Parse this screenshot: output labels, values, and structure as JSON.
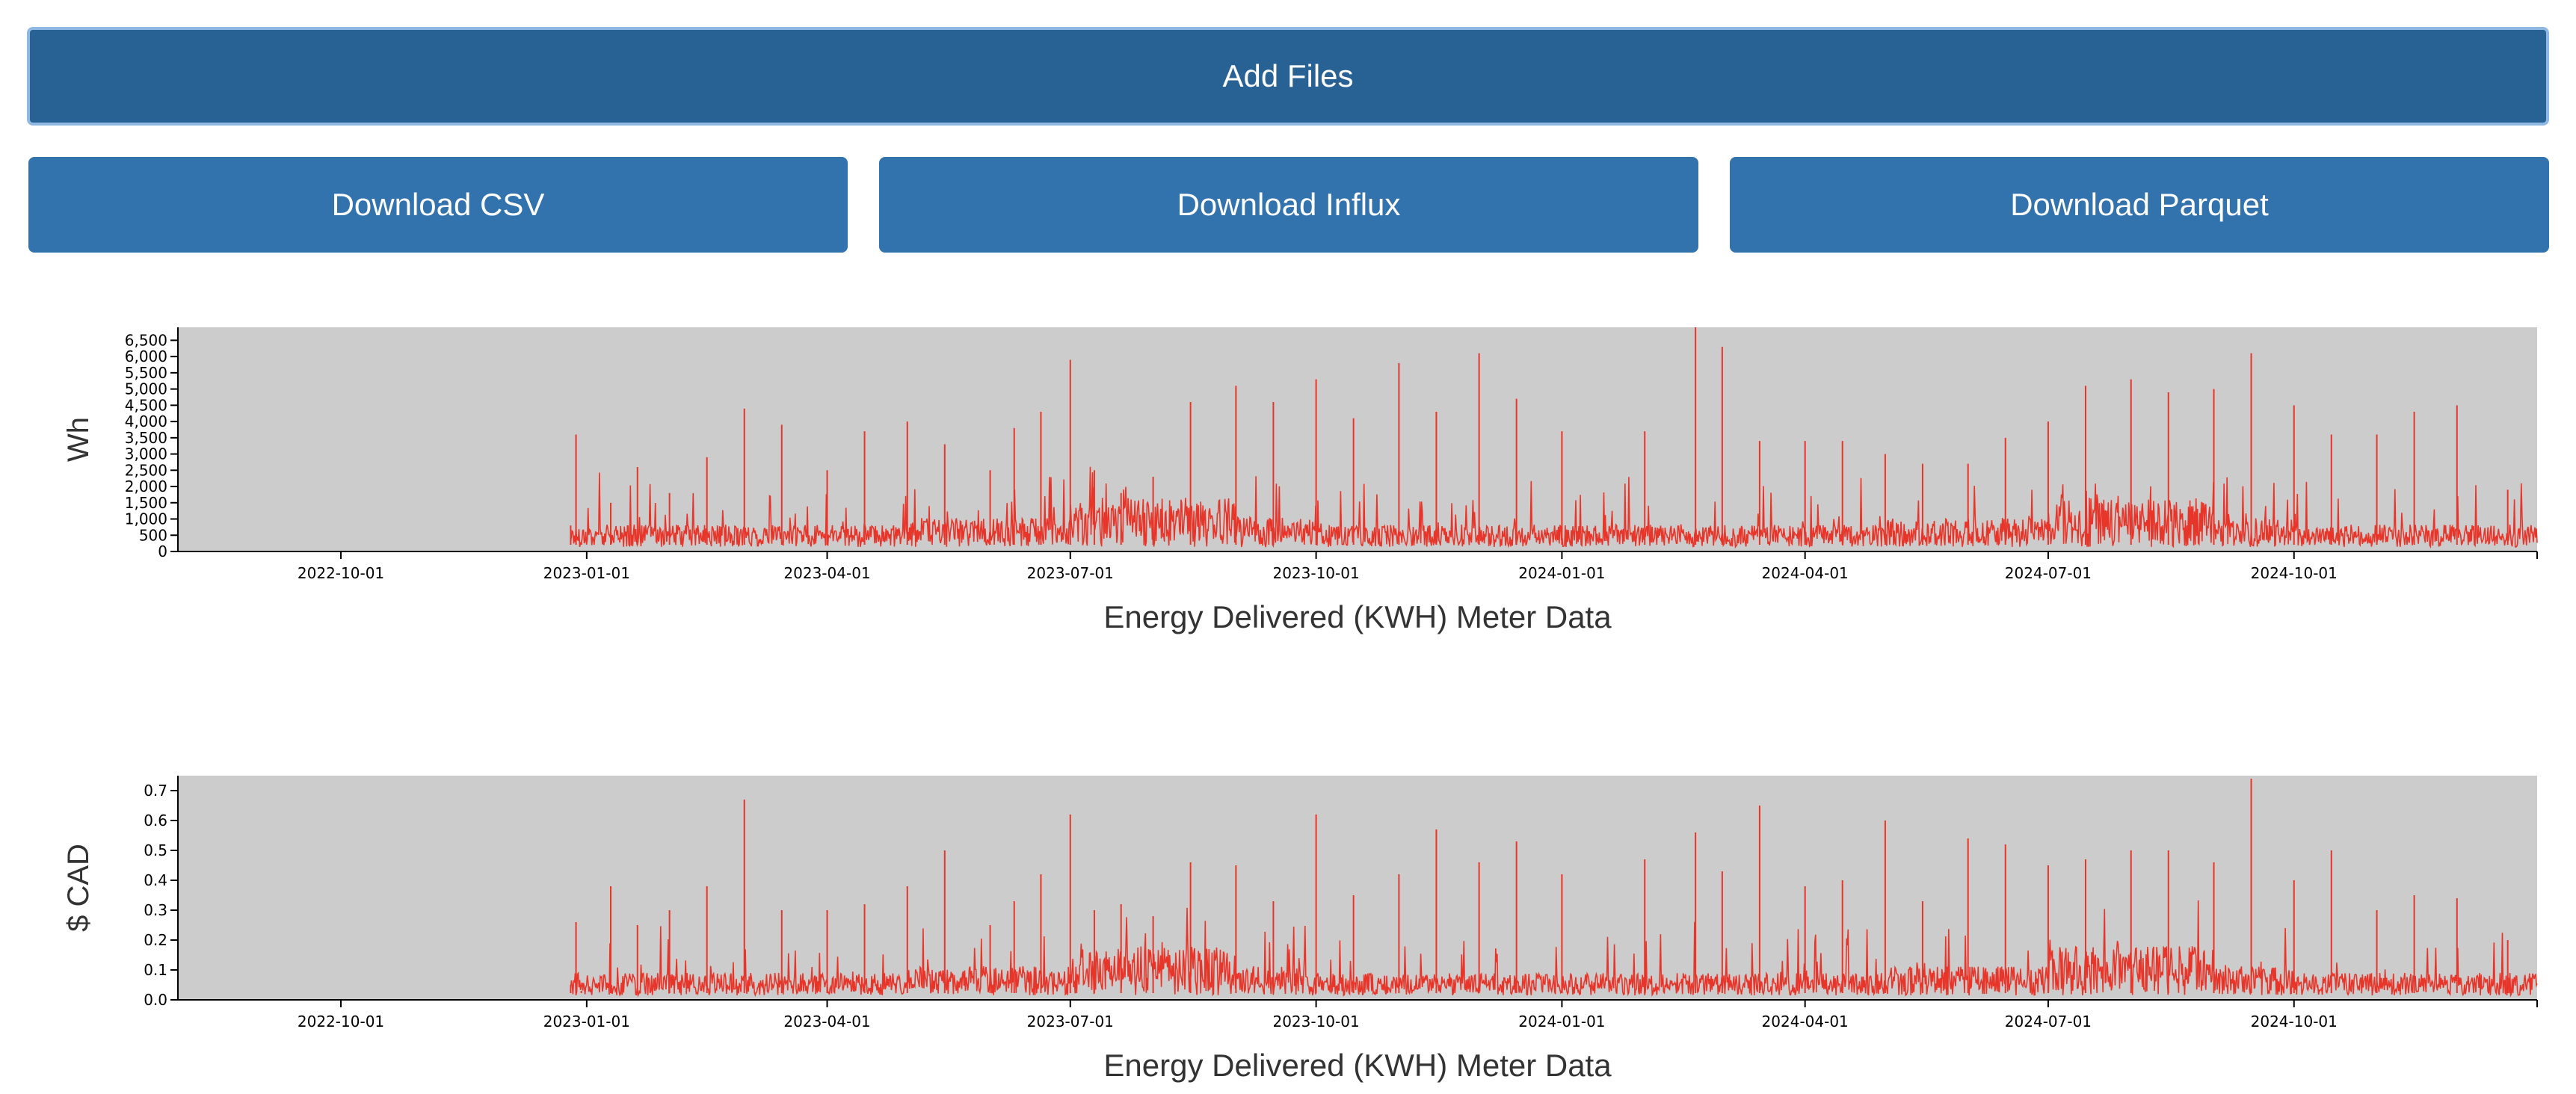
{
  "toolbar": {
    "add_files_label": "Add Files",
    "download_csv_label": "Download CSV",
    "download_influx_label": "Download Influx",
    "download_parquet_label": "Download Parquet"
  },
  "colors": {
    "plot_background": "#cccccc",
    "series": "#e8352a",
    "add_files_button": "#286193",
    "download_button": "#3272ad"
  },
  "chart_data": [
    {
      "type": "line",
      "title": "",
      "xlabel": "Energy Delivered (KWH) Meter Data",
      "ylabel": "Wh",
      "x_range": [
        "2022-08-01",
        "2024-12-31"
      ],
      "x_ticks": [
        "2022-10-01",
        "2023-01-01",
        "2023-04-01",
        "2023-07-01",
        "2023-10-01",
        "2024-01-01",
        "2024-04-01",
        "2024-07-01",
        "2024-10-01"
      ],
      "ylim": [
        0,
        6900
      ],
      "y_ticks": [
        0,
        500,
        1000,
        1500,
        2000,
        2500,
        3000,
        3500,
        4000,
        4500,
        5000,
        5500,
        6000,
        6500
      ],
      "y_tick_labels": [
        "0",
        "500",
        "1,000",
        "1,500",
        "2,000",
        "2,500",
        "3,000",
        "3,500",
        "4,000",
        "4,500",
        "5,000",
        "5,500",
        "6,000",
        "6,500"
      ],
      "grid": false,
      "series": [
        {
          "values": [
            [
              "2022-12-26",
              800
            ],
            [
              "2022-12-28",
              3600
            ],
            [
              "2022-12-30",
              300
            ],
            [
              "2023-01-10",
              1500
            ],
            [
              "2023-01-20",
              2600
            ],
            [
              "2023-02-01",
              1800
            ],
            [
              "2023-02-15",
              2900
            ],
            [
              "2023-03-01",
              4400
            ],
            [
              "2023-03-15",
              3900
            ],
            [
              "2023-04-01",
              2500
            ],
            [
              "2023-04-15",
              3700
            ],
            [
              "2023-05-01",
              4000
            ],
            [
              "2023-05-15",
              3300
            ],
            [
              "2023-06-01",
              2500
            ],
            [
              "2023-06-10",
              3800
            ],
            [
              "2023-06-20",
              4300
            ],
            [
              "2023-07-01",
              5900
            ],
            [
              "2023-07-10",
              2500
            ],
            [
              "2023-07-20",
              1800
            ],
            [
              "2023-08-01",
              2300
            ],
            [
              "2023-08-15",
              4600
            ],
            [
              "2023-09-01",
              5100
            ],
            [
              "2023-09-15",
              4600
            ],
            [
              "2023-10-01",
              5300
            ],
            [
              "2023-10-15",
              4100
            ],
            [
              "2023-11-01",
              5800
            ],
            [
              "2023-11-15",
              4300
            ],
            [
              "2023-12-01",
              6100
            ],
            [
              "2023-12-15",
              4700
            ],
            [
              "2024-01-01",
              3700
            ],
            [
              "2024-02-01",
              3700
            ],
            [
              "2024-02-20",
              6900
            ],
            [
              "2024-03-01",
              6300
            ],
            [
              "2024-03-15",
              3400
            ],
            [
              "2024-04-01",
              3400
            ],
            [
              "2024-04-15",
              3400
            ],
            [
              "2024-05-01",
              3000
            ],
            [
              "2024-05-15",
              2700
            ],
            [
              "2024-06-01",
              2700
            ],
            [
              "2024-06-15",
              3500
            ],
            [
              "2024-07-01",
              4000
            ],
            [
              "2024-07-15",
              5100
            ],
            [
              "2024-08-01",
              5300
            ],
            [
              "2024-08-15",
              4900
            ],
            [
              "2024-09-01",
              5000
            ],
            [
              "2024-09-15",
              6100
            ],
            [
              "2024-10-01",
              4500
            ],
            [
              "2024-10-15",
              3600
            ],
            [
              "2024-11-01",
              3600
            ],
            [
              "2024-11-15",
              4300
            ],
            [
              "2024-12-01",
              4500
            ],
            [
              "2024-12-20",
              1900
            ]
          ]
        }
      ]
    },
    {
      "type": "line",
      "title": "",
      "xlabel": "Energy Delivered (KWH) Meter Data",
      "ylabel": "$ CAD",
      "x_range": [
        "2022-08-01",
        "2024-12-31"
      ],
      "x_ticks": [
        "2022-10-01",
        "2023-01-01",
        "2023-04-01",
        "2023-07-01",
        "2023-10-01",
        "2024-01-01",
        "2024-04-01",
        "2024-07-01",
        "2024-10-01"
      ],
      "ylim": [
        0,
        0.75
      ],
      "y_ticks": [
        0,
        0.1,
        0.2,
        0.3,
        0.4,
        0.5,
        0.6,
        0.7
      ],
      "y_tick_labels": [
        "0.0",
        "0.1",
        "0.2",
        "0.3",
        "0.4",
        "0.5",
        "0.6",
        "0.7"
      ],
      "grid": false,
      "series": [
        {
          "values": [
            [
              "2022-12-26",
              0.05
            ],
            [
              "2022-12-28",
              0.26
            ],
            [
              "2022-12-30",
              0.03
            ],
            [
              "2023-01-10",
              0.38
            ],
            [
              "2023-01-20",
              0.25
            ],
            [
              "2023-02-01",
              0.3
            ],
            [
              "2023-02-15",
              0.38
            ],
            [
              "2023-03-01",
              0.67
            ],
            [
              "2023-03-15",
              0.3
            ],
            [
              "2023-04-01",
              0.3
            ],
            [
              "2023-04-15",
              0.32
            ],
            [
              "2023-05-01",
              0.38
            ],
            [
              "2023-05-15",
              0.5
            ],
            [
              "2023-06-01",
              0.25
            ],
            [
              "2023-06-10",
              0.33
            ],
            [
              "2023-06-20",
              0.42
            ],
            [
              "2023-07-01",
              0.62
            ],
            [
              "2023-07-10",
              0.3
            ],
            [
              "2023-07-20",
              0.32
            ],
            [
              "2023-08-01",
              0.28
            ],
            [
              "2023-08-15",
              0.46
            ],
            [
              "2023-09-01",
              0.45
            ],
            [
              "2023-09-15",
              0.33
            ],
            [
              "2023-10-01",
              0.62
            ],
            [
              "2023-10-15",
              0.35
            ],
            [
              "2023-11-01",
              0.42
            ],
            [
              "2023-11-15",
              0.57
            ],
            [
              "2023-12-01",
              0.46
            ],
            [
              "2023-12-15",
              0.53
            ],
            [
              "2024-01-01",
              0.42
            ],
            [
              "2024-02-01",
              0.47
            ],
            [
              "2024-02-20",
              0.56
            ],
            [
              "2024-03-01",
              0.43
            ],
            [
              "2024-03-15",
              0.65
            ],
            [
              "2024-04-01",
              0.38
            ],
            [
              "2024-04-15",
              0.4
            ],
            [
              "2024-05-01",
              0.6
            ],
            [
              "2024-05-15",
              0.33
            ],
            [
              "2024-06-01",
              0.54
            ],
            [
              "2024-06-15",
              0.52
            ],
            [
              "2024-07-01",
              0.45
            ],
            [
              "2024-07-15",
              0.47
            ],
            [
              "2024-08-01",
              0.5
            ],
            [
              "2024-08-15",
              0.5
            ],
            [
              "2024-09-01",
              0.46
            ],
            [
              "2024-09-15",
              0.74
            ],
            [
              "2024-10-01",
              0.4
            ],
            [
              "2024-10-15",
              0.5
            ],
            [
              "2024-11-01",
              0.3
            ],
            [
              "2024-11-15",
              0.35
            ],
            [
              "2024-12-01",
              0.34
            ],
            [
              "2024-12-20",
              0.2
            ]
          ]
        }
      ]
    }
  ]
}
